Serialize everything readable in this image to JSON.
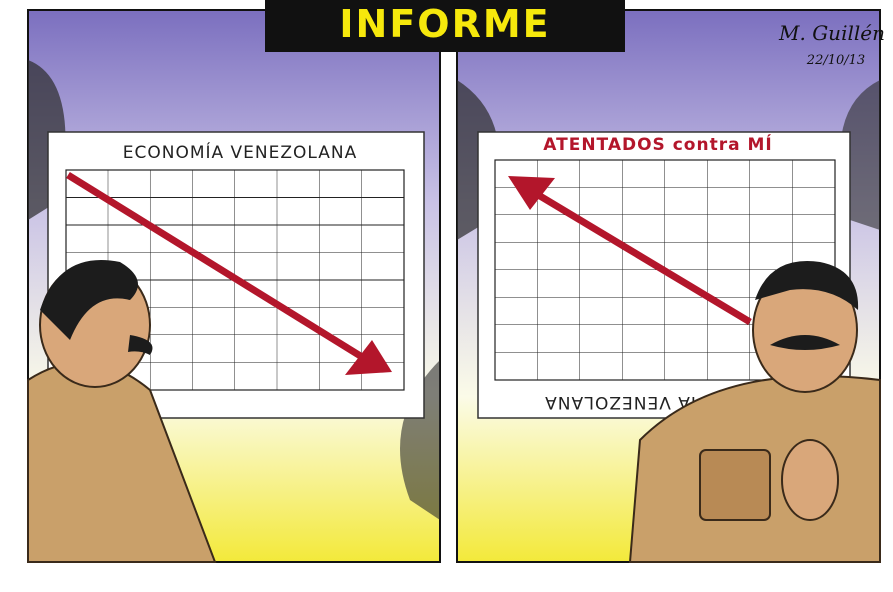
{
  "header": {
    "title": "INFORME"
  },
  "signature": {
    "name": "M. Guillén",
    "date": "22/10/13"
  },
  "panels": [
    {
      "chart_title": "ECONOMÍA VENEZOLANA"
    },
    {
      "chart_title": "ATENTADOS contra MÍ",
      "flipped_title": "IA VENEZOLANA"
    }
  ]
}
